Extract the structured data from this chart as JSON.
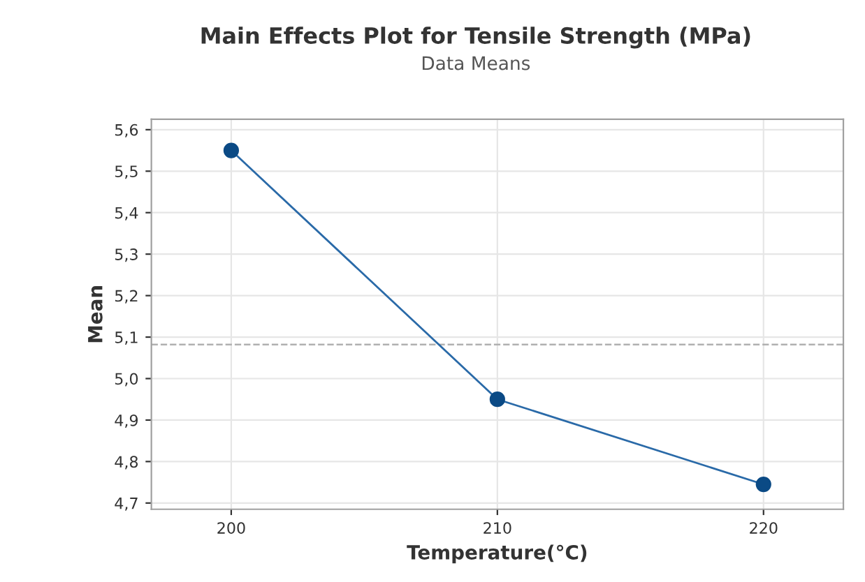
{
  "chart_data": {
    "type": "line",
    "title": "Main Effects Plot for Tensile Strength (MPa)",
    "subtitle": "Data Means",
    "xlabel": "Temperature(°C)",
    "ylabel": "Mean",
    "x": [
      200,
      210,
      220
    ],
    "series": [
      {
        "color": "#2a6aa8",
        "values": [
          5.55,
          4.95,
          4.745
        ]
      }
    ],
    "xlim": [
      197,
      223
    ],
    "xticks": [
      200,
      210,
      220
    ],
    "ylim": [
      4.685,
      5.625
    ],
    "yticks": [
      {
        "value": 4.7,
        "label": "4,7"
      },
      {
        "value": 4.8,
        "label": "4,8"
      },
      {
        "value": 4.9,
        "label": "4,9"
      },
      {
        "value": 5.0,
        "label": "5,0"
      },
      {
        "value": 5.1,
        "label": "5,1"
      },
      {
        "value": 5.2,
        "label": "5,2"
      },
      {
        "value": 5.3,
        "label": "5,3"
      },
      {
        "value": 5.4,
        "label": "5,4"
      },
      {
        "value": 5.5,
        "label": "5,5"
      },
      {
        "value": 5.6,
        "label": "5,6"
      }
    ],
    "ref_lines": [
      {
        "axis": "y",
        "value": 5.082,
        "color": "#b0b0b0",
        "line_style": "dashed"
      }
    ],
    "grid": true,
    "marker": "circle",
    "line_style": "solid"
  }
}
